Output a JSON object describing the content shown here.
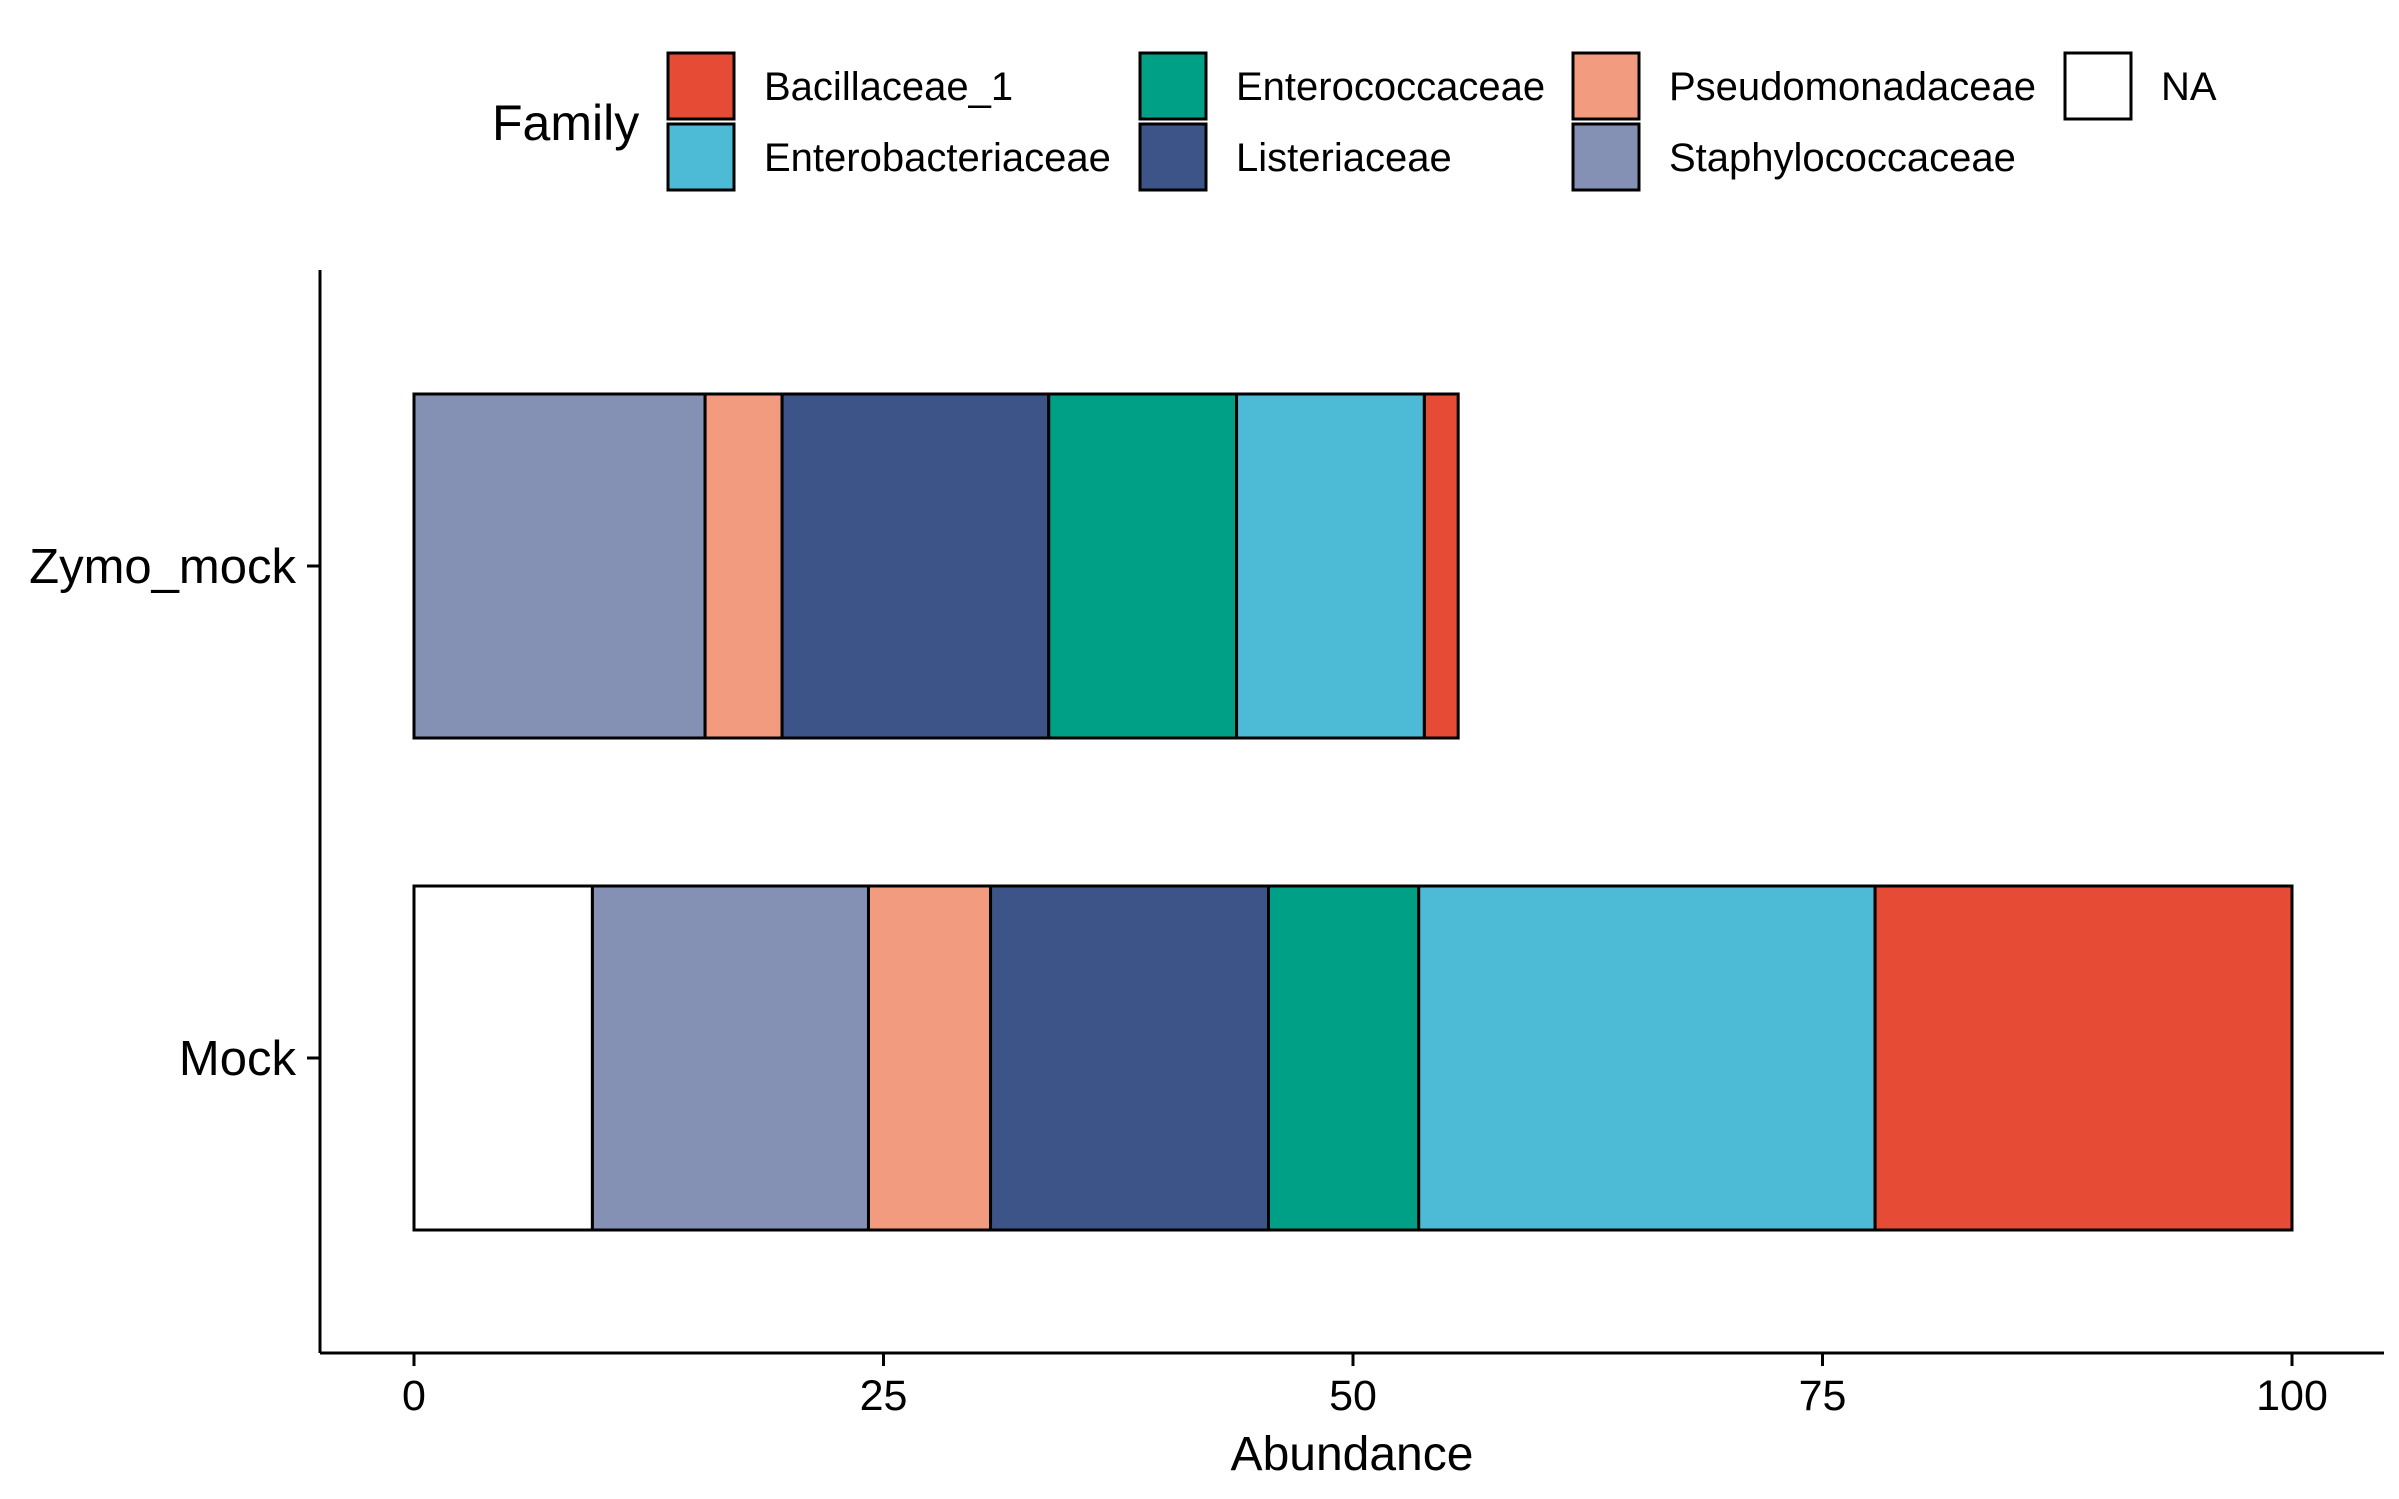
{
  "chart_data": {
    "type": "bar",
    "orientation": "horizontal",
    "stacked": true,
    "title": "",
    "xlabel": "Abundance",
    "ylabel": "",
    "xlim": [
      -5,
      105
    ],
    "xticks": [
      0,
      25,
      50,
      75,
      100
    ],
    "xtick_labels": [
      "0",
      "25",
      "50",
      "75",
      "100"
    ],
    "categories": [
      "Zymo_mock",
      "Mock"
    ],
    "grid": false,
    "legend": {
      "title": "Family",
      "position": "top",
      "columns": 4
    },
    "series": [
      {
        "name": "NA",
        "color": "#FFFFFF",
        "values": [
          0,
          9.5
        ]
      },
      {
        "name": "Staphylococcaceae",
        "color": "#8491B4",
        "values": [
          15.5,
          14.7
        ]
      },
      {
        "name": "Pseudomonadaceae",
        "color": "#F39B7F",
        "values": [
          4.1,
          6.5
        ]
      },
      {
        "name": "Listeriaceae",
        "color": "#3C5488",
        "values": [
          14.2,
          14.8
        ]
      },
      {
        "name": "Enterococcaceae",
        "color": "#00A087",
        "values": [
          10.0,
          8.0
        ]
      },
      {
        "name": "Enterobacteriaceae",
        "color": "#4DBBD5",
        "values": [
          10.0,
          24.3
        ]
      },
      {
        "name": "Bacillaceae_1",
        "color": "#E64B35",
        "values": [
          1.8,
          22.2
        ]
      }
    ],
    "legend_order": [
      "Bacillaceae_1",
      "Enterobacteriaceae",
      "Enterococcaceae",
      "Listeriaceae",
      "Pseudomonadaceae",
      "Staphylococcaceae",
      "NA"
    ]
  }
}
